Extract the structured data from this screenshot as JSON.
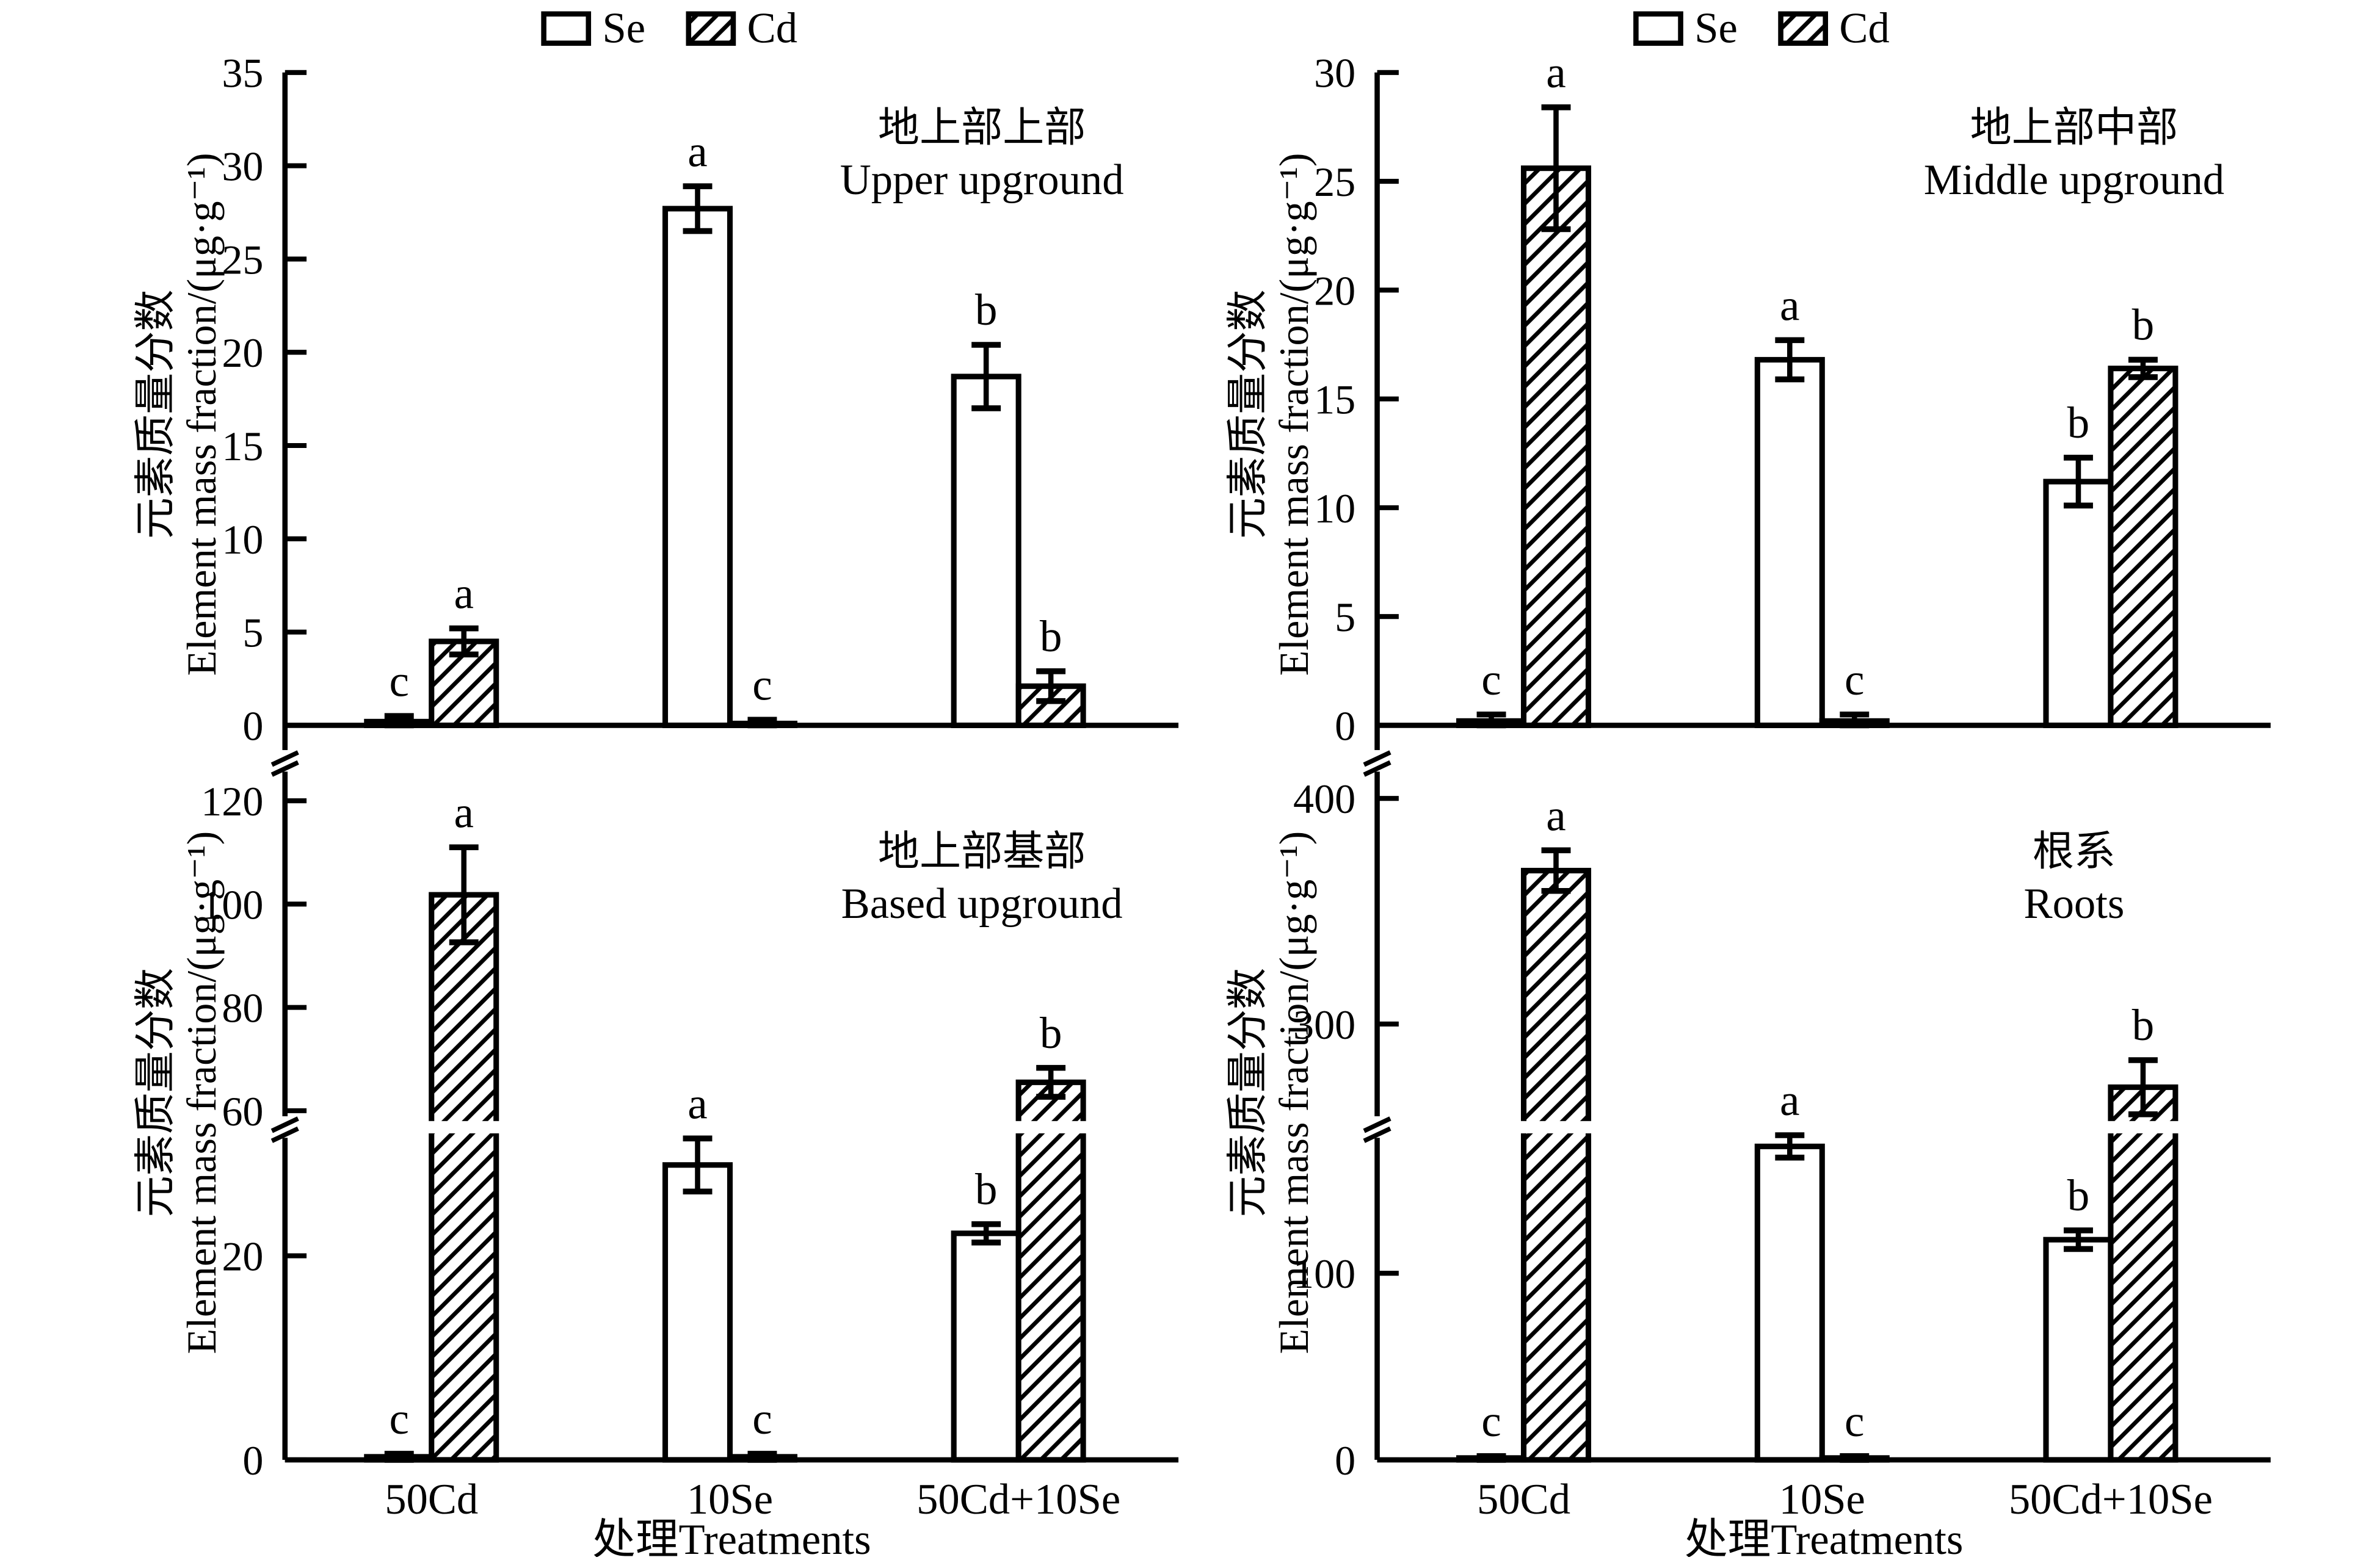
{
  "figure": {
    "background": "#ffffff",
    "foreground": "#000000",
    "legend": {
      "items": [
        {
          "label": "Se",
          "fill": "white"
        },
        {
          "label": "Cd",
          "fill": "hatch"
        }
      ]
    },
    "xlabel": "处理Treatments",
    "ylabel_line1": "元素质量分数",
    "ylabel_line2": "Element mass fraction/(μg·g⁻¹)"
  },
  "chart_data": {
    "type": "bar",
    "categories": [
      "50Cd",
      "10Se",
      "50Cd+10Se"
    ],
    "xlabel": "处理Treatments",
    "ylabel": "元素质量分数 Element mass fraction/(μg·g⁻¹)",
    "legend": [
      "Se",
      "Cd"
    ],
    "legend_position": "top",
    "grid": false,
    "panels": [
      {
        "id": "upper-upground",
        "row": 0,
        "col": 0,
        "title_zh": "地上部上部",
        "title_en": "Upper upground",
        "y_ticks": [
          0,
          5,
          10,
          15,
          20,
          25,
          30,
          35
        ],
        "scale_anchors": [
          [
            0,
            0
          ],
          [
            35,
            0.9837
          ]
        ],
        "break_band": null,
        "axis_breaks": [],
        "series": [
          {
            "name": "Se",
            "values": [
              0.2,
              27.7,
              18.7
            ],
            "errors": [
              0.3,
              1.2,
              1.7
            ],
            "letters": [
              "c",
              "a",
              "b"
            ]
          },
          {
            "name": "Cd",
            "values": [
              4.5,
              0.1,
              2.1
            ],
            "errors": [
              0.7,
              0.2,
              0.8
            ],
            "letters": [
              "a",
              "c",
              "b"
            ]
          }
        ]
      },
      {
        "id": "middle-upground",
        "row": 0,
        "col": 1,
        "title_zh": "地上部中部",
        "title_en": "Middle upground",
        "y_ticks": [
          0,
          5,
          10,
          15,
          20,
          25,
          30
        ],
        "scale_anchors": [
          [
            0,
            0
          ],
          [
            30,
            0.9837
          ]
        ],
        "break_band": null,
        "axis_breaks": [],
        "series": [
          {
            "name": "Se",
            "values": [
              0.2,
              16.8,
              11.2
            ],
            "errors": [
              0.3,
              0.9,
              1.1
            ],
            "letters": [
              "c",
              "a",
              "b"
            ]
          },
          {
            "name": "Cd",
            "values": [
              25.6,
              0.2,
              16.4
            ],
            "errors": [
              2.8,
              0.3,
              0.4
            ],
            "letters": [
              "a",
              "c",
              "b"
            ]
          }
        ]
      },
      {
        "id": "based-upground",
        "row": 1,
        "col": 0,
        "title_zh": "地上部基部",
        "title_en": "Based upground",
        "y_ticks": [
          0,
          20,
          60,
          80,
          100,
          120
        ],
        "scale_anchors": [
          [
            0,
            0
          ],
          [
            32,
            0.465
          ],
          [
            58,
            0.4825
          ],
          [
            120,
            0.9386
          ]
        ],
        "break_band": [
          0.465,
          0.4825
        ],
        "axis_breaks": [
          0.474,
          0.9955
        ],
        "series": [
          {
            "name": "Se",
            "values": [
              0.3,
              28.9,
              22.2
            ],
            "errors": [
              0.3,
              2.6,
              0.9
            ],
            "letters": [
              "c",
              "a",
              "b"
            ]
          },
          {
            "name": "Cd",
            "values": [
              101.8,
              0.3,
              65.5
            ],
            "errors": [
              9.2,
              0.3,
              2.8
            ],
            "letters": [
              "a",
              "c",
              "b"
            ]
          }
        ]
      },
      {
        "id": "roots",
        "row": 1,
        "col": 1,
        "title_zh": "根系",
        "title_en": "Roots",
        "y_ticks": [
          0,
          100,
          300,
          400
        ],
        "scale_anchors": [
          [
            0,
            0
          ],
          [
            175,
            0.465
          ],
          [
            257,
            0.4825
          ],
          [
            400,
            0.942
          ]
        ],
        "break_band": [
          0.465,
          0.4825
        ],
        "axis_breaks": [
          0.474,
          0.9955
        ],
        "series": [
          {
            "name": "Se",
            "values": [
              1,
              168,
              118
            ],
            "errors": [
              1,
              6,
              5
            ],
            "letters": [
              "c",
              "a",
              "b"
            ]
          },
          {
            "name": "Cd",
            "values": [
              368,
              1,
              272
            ],
            "errors": [
              9,
              1,
              12
            ],
            "letters": [
              "a",
              "c",
              "b"
            ]
          }
        ]
      }
    ]
  }
}
